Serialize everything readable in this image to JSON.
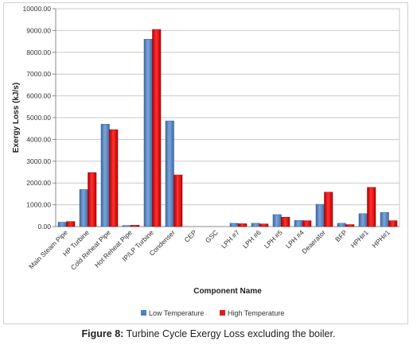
{
  "caption": {
    "label": "Figure 8:",
    "text": " Turbine Cycle Exergy Loss excluding the boiler."
  },
  "chart_data": {
    "type": "bar",
    "xlabel": "Component Name",
    "ylabel": "Exergy Loss (kJ/s)",
    "ylim": [
      0,
      10000
    ],
    "ytick_step": 1000,
    "ytick_format": "0.00",
    "grid": true,
    "legend_position": "bottom",
    "categories": [
      "Main Steam Pipe",
      "HP Turbine",
      "Cold Reheat Pipe",
      "Hot Reheat Pipe",
      "IP/LP Turbine",
      "Condenser",
      "CEP",
      "GSC",
      "LPH #7",
      "LPH #6",
      "LPH #5",
      "LPH #4",
      "Deaerator",
      "BFP",
      "HPH#1",
      "HPH#1"
    ],
    "series": [
      {
        "name": "Low Temperature",
        "color": "#4f81bd",
        "values": [
          200,
          1700,
          4700,
          50,
          8600,
          4850,
          0,
          0,
          150,
          150,
          550,
          280,
          1020,
          150,
          590,
          650
        ]
      },
      {
        "name": "High Temperature",
        "color": "#e31a1c",
        "values": [
          230,
          2480,
          4450,
          60,
          9050,
          2370,
          0,
          0,
          130,
          120,
          430,
          270,
          1580,
          90,
          1800,
          270
        ]
      }
    ]
  }
}
